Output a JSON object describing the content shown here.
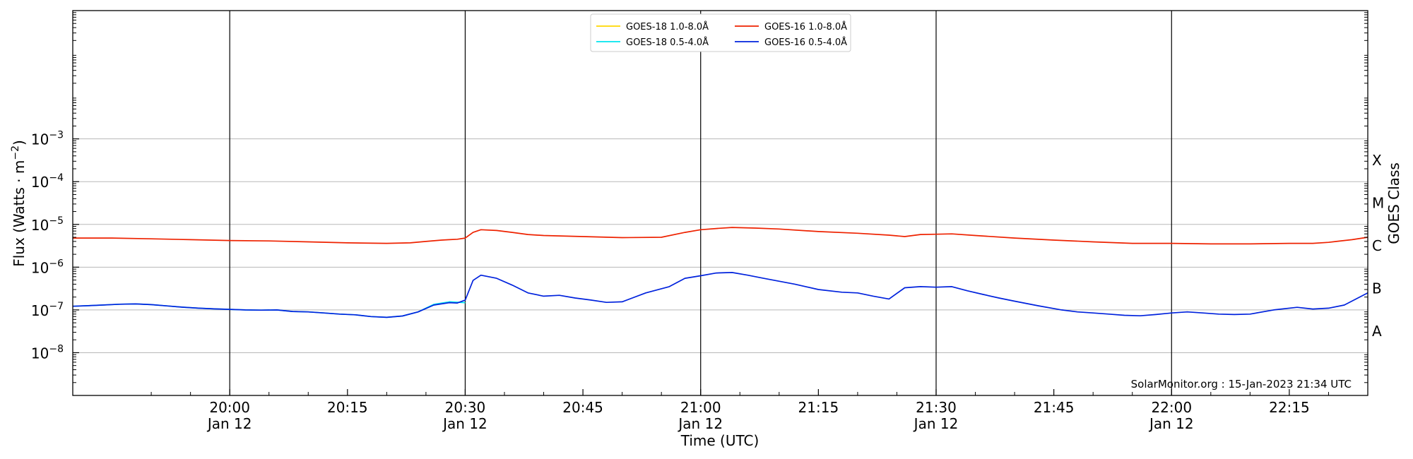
{
  "chart_data": {
    "type": "line",
    "title": "",
    "xlabel": "Time (UTC)",
    "ylabel_main": "Flux (Watts · m",
    "ylabel_sup": "−2",
    "ylabel_tail": ")",
    "right_label": "GOES Class",
    "y_scale": "log",
    "ylim_exp": [
      -9,
      0
    ],
    "x_range_min": [
      -20,
      145
    ],
    "grid": "horizontal",
    "legend_position": "top-center",
    "credit": "SolarMonitor.org : 15-Jan-2023 21:34 UTC",
    "y_ticks": [
      {
        "exp": -8,
        "base": "10",
        "sup": "−8"
      },
      {
        "exp": -7,
        "base": "10",
        "sup": "−7"
      },
      {
        "exp": -6,
        "base": "10",
        "sup": "−6"
      },
      {
        "exp": -5,
        "base": "10",
        "sup": "−5"
      },
      {
        "exp": -4,
        "base": "10",
        "sup": "−4"
      },
      {
        "exp": -3,
        "base": "10",
        "sup": "−3"
      }
    ],
    "x_ticks": [
      {
        "min": 0,
        "time": "20:00",
        "date": "Jan 12"
      },
      {
        "min": 15,
        "time": "20:15",
        "date": ""
      },
      {
        "min": 30,
        "time": "20:30",
        "date": "Jan 12"
      },
      {
        "min": 45,
        "time": "20:45",
        "date": ""
      },
      {
        "min": 60,
        "time": "21:00",
        "date": "Jan 12"
      },
      {
        "min": 75,
        "time": "21:15",
        "date": ""
      },
      {
        "min": 90,
        "time": "21:30",
        "date": "Jan 12"
      },
      {
        "min": 105,
        "time": "21:45",
        "date": ""
      },
      {
        "min": 120,
        "time": "22:00",
        "date": "Jan 12"
      },
      {
        "min": 135,
        "time": "22:15",
        "date": ""
      }
    ],
    "vlines_min": [
      0,
      30,
      60,
      90,
      120
    ],
    "goes_classes": [
      {
        "label": "X",
        "exp": -3.5
      },
      {
        "label": "M",
        "exp": -4.5
      },
      {
        "label": "C",
        "exp": -5.5
      },
      {
        "label": "B",
        "exp": -6.5
      },
      {
        "label": "A",
        "exp": -7.5
      }
    ],
    "legend": [
      {
        "name": "GOES-18 1.0-8.0Å",
        "color": "#ffd700"
      },
      {
        "name": "GOES-18 0.5-4.0Å",
        "color": "#00e5ee"
      },
      {
        "name": "GOES-16 1.0-8.0Å",
        "color": "#ee2200"
      },
      {
        "name": "GOES-16 0.5-4.0Å",
        "color": "#0022dd"
      }
    ],
    "series": [
      {
        "name": "GOES-18 0.5-4.0Å",
        "color": "#00e5ee",
        "x": [
          -20,
          -17,
          -14,
          -12,
          -10,
          -8,
          -6,
          -4,
          -2,
          0,
          2,
          4,
          6,
          8,
          10,
          12,
          14,
          16,
          18,
          20,
          22,
          24,
          26,
          28,
          30
        ],
        "y": [
          1.22e-07,
          1.28e-07,
          1.36e-07,
          1.38e-07,
          1.33e-07,
          1.24e-07,
          1.16e-07,
          1.1e-07,
          1.06e-07,
          1.03e-07,
          1e-07,
          9.9e-08,
          1e-07,
          9.2e-08,
          9e-08,
          8.5e-08,
          8e-08,
          7.7e-08,
          7e-08,
          6.7e-08,
          7.2e-08,
          9e-08,
          1.35e-07,
          1.55e-07,
          1.48e-07
        ]
      },
      {
        "name": "GOES-16 1.0-8.0Å",
        "color": "#ee2200",
        "x": [
          -20,
          -15,
          -10,
          -5,
          0,
          5,
          10,
          15,
          20,
          23,
          25,
          27,
          28,
          29,
          30,
          31,
          32,
          34,
          36,
          38,
          40,
          45,
          50,
          55,
          58,
          60,
          62,
          64,
          67,
          70,
          75,
          80,
          84,
          86,
          88,
          90,
          92,
          95,
          100,
          105,
          110,
          115,
          120,
          125,
          130,
          135,
          138,
          140,
          141,
          143,
          145
        ],
        "y": [
          4.8e-06,
          4.8e-06,
          4.6e-06,
          4.4e-06,
          4.2e-06,
          4.1e-06,
          3.9e-06,
          3.7e-06,
          3.6e-06,
          3.7e-06,
          4e-06,
          4.3e-06,
          4.4e-06,
          4.5e-06,
          4.8e-06,
          6.5e-06,
          7.5e-06,
          7.2e-06,
          6.5e-06,
          5.8e-06,
          5.5e-06,
          5.2e-06,
          4.9e-06,
          5e-06,
          6.5e-06,
          7.5e-06,
          8e-06,
          8.5e-06,
          8.2e-06,
          7.8e-06,
          6.8e-06,
          6.2e-06,
          5.6e-06,
          5.2e-06,
          5.8e-06,
          5.9e-06,
          6e-06,
          5.5e-06,
          4.8e-06,
          4.3e-06,
          3.9e-06,
          3.6e-06,
          3.6e-06,
          3.5e-06,
          3.5e-06,
          3.6e-06,
          3.6e-06,
          3.8e-06,
          4e-06,
          4.4e-06,
          5e-06
        ]
      },
      {
        "name": "GOES-16 0.5-4.0Å",
        "color": "#0022dd",
        "x": [
          -20,
          -17,
          -14,
          -12,
          -10,
          -8,
          -6,
          -4,
          -2,
          0,
          2,
          4,
          6,
          8,
          10,
          12,
          14,
          16,
          18,
          20,
          22,
          24,
          26,
          28,
          29,
          30,
          31,
          32,
          34,
          36,
          38,
          40,
          42,
          44,
          46,
          48,
          50,
          53,
          56,
          58,
          60,
          62,
          64,
          66,
          68,
          72,
          75,
          78,
          80,
          82,
          84,
          86,
          88,
          90,
          92,
          94,
          96,
          98,
          100,
          103,
          106,
          108,
          110,
          112,
          114,
          116,
          118,
          120,
          122,
          124,
          126,
          128,
          130,
          133,
          136,
          138,
          140,
          142,
          145
        ],
        "y": [
          1.22e-07,
          1.28e-07,
          1.36e-07,
          1.38e-07,
          1.33e-07,
          1.24e-07,
          1.16e-07,
          1.1e-07,
          1.06e-07,
          1.03e-07,
          1e-07,
          9.9e-08,
          1e-07,
          9.2e-08,
          9e-08,
          8.5e-08,
          8e-08,
          7.7e-08,
          7e-08,
          6.7e-08,
          7.2e-08,
          9e-08,
          1.3e-07,
          1.48e-07,
          1.45e-07,
          1.7e-07,
          4.9e-07,
          6.5e-07,
          5.5e-07,
          3.8e-07,
          2.5e-07,
          2.1e-07,
          2.2e-07,
          1.9e-07,
          1.7e-07,
          1.5e-07,
          1.55e-07,
          2.5e-07,
          3.5e-07,
          5.5e-07,
          6.3e-07,
          7.3e-07,
          7.5e-07,
          6.5e-07,
          5.5e-07,
          4e-07,
          3e-07,
          2.6e-07,
          2.5e-07,
          2.1e-07,
          1.8e-07,
          3.3e-07,
          3.5e-07,
          3.4e-07,
          3.5e-07,
          2.8e-07,
          2.3e-07,
          1.9e-07,
          1.6e-07,
          1.25e-07,
          1e-07,
          9e-08,
          8.5e-08,
          8e-08,
          7.5e-08,
          7.3e-08,
          7.8e-08,
          8.5e-08,
          9e-08,
          8.5e-08,
          8e-08,
          7.8e-08,
          8e-08,
          1e-07,
          1.15e-07,
          1.05e-07,
          1.1e-07,
          1.3e-07,
          2.5e-07
        ]
      }
    ]
  }
}
